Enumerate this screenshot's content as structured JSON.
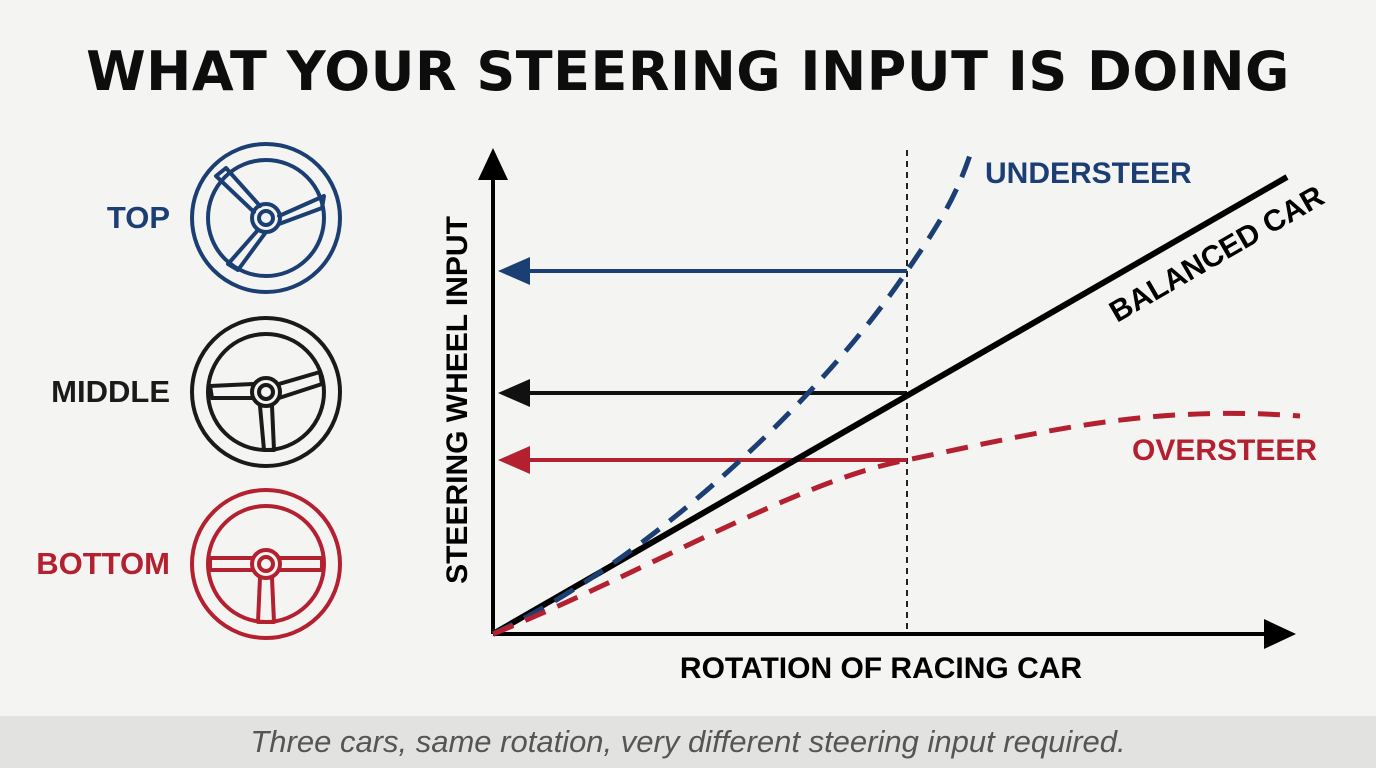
{
  "title": "WHAT YOUR STEERING INPUT IS DOING",
  "caption": "Three cars, same rotation, very different steering input required.",
  "colors": {
    "top": "#1c3f73",
    "middle": "#1a1a1a",
    "bottom": "#b3202f"
  },
  "wheels": [
    {
      "label": "TOP",
      "icon": "steering-wheel-icon",
      "color": "#1c3f73"
    },
    {
      "label": "MIDDLE",
      "icon": "steering-wheel-icon",
      "color": "#1a1a1a"
    },
    {
      "label": "BOTTOM",
      "icon": "steering-wheel-icon",
      "color": "#b3202f"
    }
  ],
  "chart": {
    "xlabel": "ROTATION OF RACING CAR",
    "ylabel": "STEERING WHEEL INPUT",
    "curves": {
      "understeer": {
        "label": "UNDERSTEER",
        "color": "#1c3f73",
        "style": "dashed"
      },
      "balanced": {
        "label": "BALANCED CAR",
        "color": "#000000",
        "style": "solid"
      },
      "oversteer": {
        "label": "OVERSTEER",
        "color": "#b3202f",
        "style": "dashed"
      }
    }
  }
}
